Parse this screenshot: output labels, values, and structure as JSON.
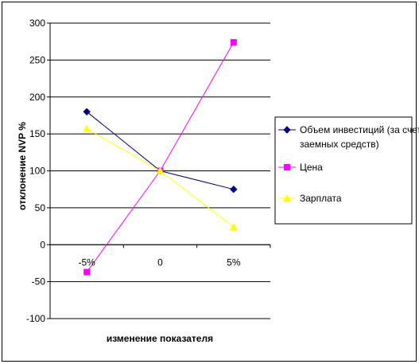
{
  "chart_data": {
    "type": "line",
    "xlabel": "изменение показателя",
    "ylabel": "отклонение NVP %",
    "categories": [
      "-5%",
      "0",
      "5%"
    ],
    "ylim": [
      -100,
      300
    ],
    "ytick_step": 50,
    "grid": "horizontal",
    "legend_position": "right",
    "series": [
      {
        "name": "Объем инвестиций (за счет заемных средств)",
        "name_lines": [
          "Объем инвестиций (за счет",
          "заемных средств)"
        ],
        "values": [
          180,
          100,
          75
        ],
        "color": "#000080",
        "marker": "diamond"
      },
      {
        "name": "Цена",
        "name_lines": [
          "Цена"
        ],
        "values": [
          -37,
          100,
          274
        ],
        "color": "#FF00FF",
        "marker": "square"
      },
      {
        "name": "Зарплата",
        "name_lines": [
          "Зарплата"
        ],
        "values": [
          157,
          100,
          24
        ],
        "color": "#FFFF00",
        "marker": "triangle"
      }
    ]
  }
}
